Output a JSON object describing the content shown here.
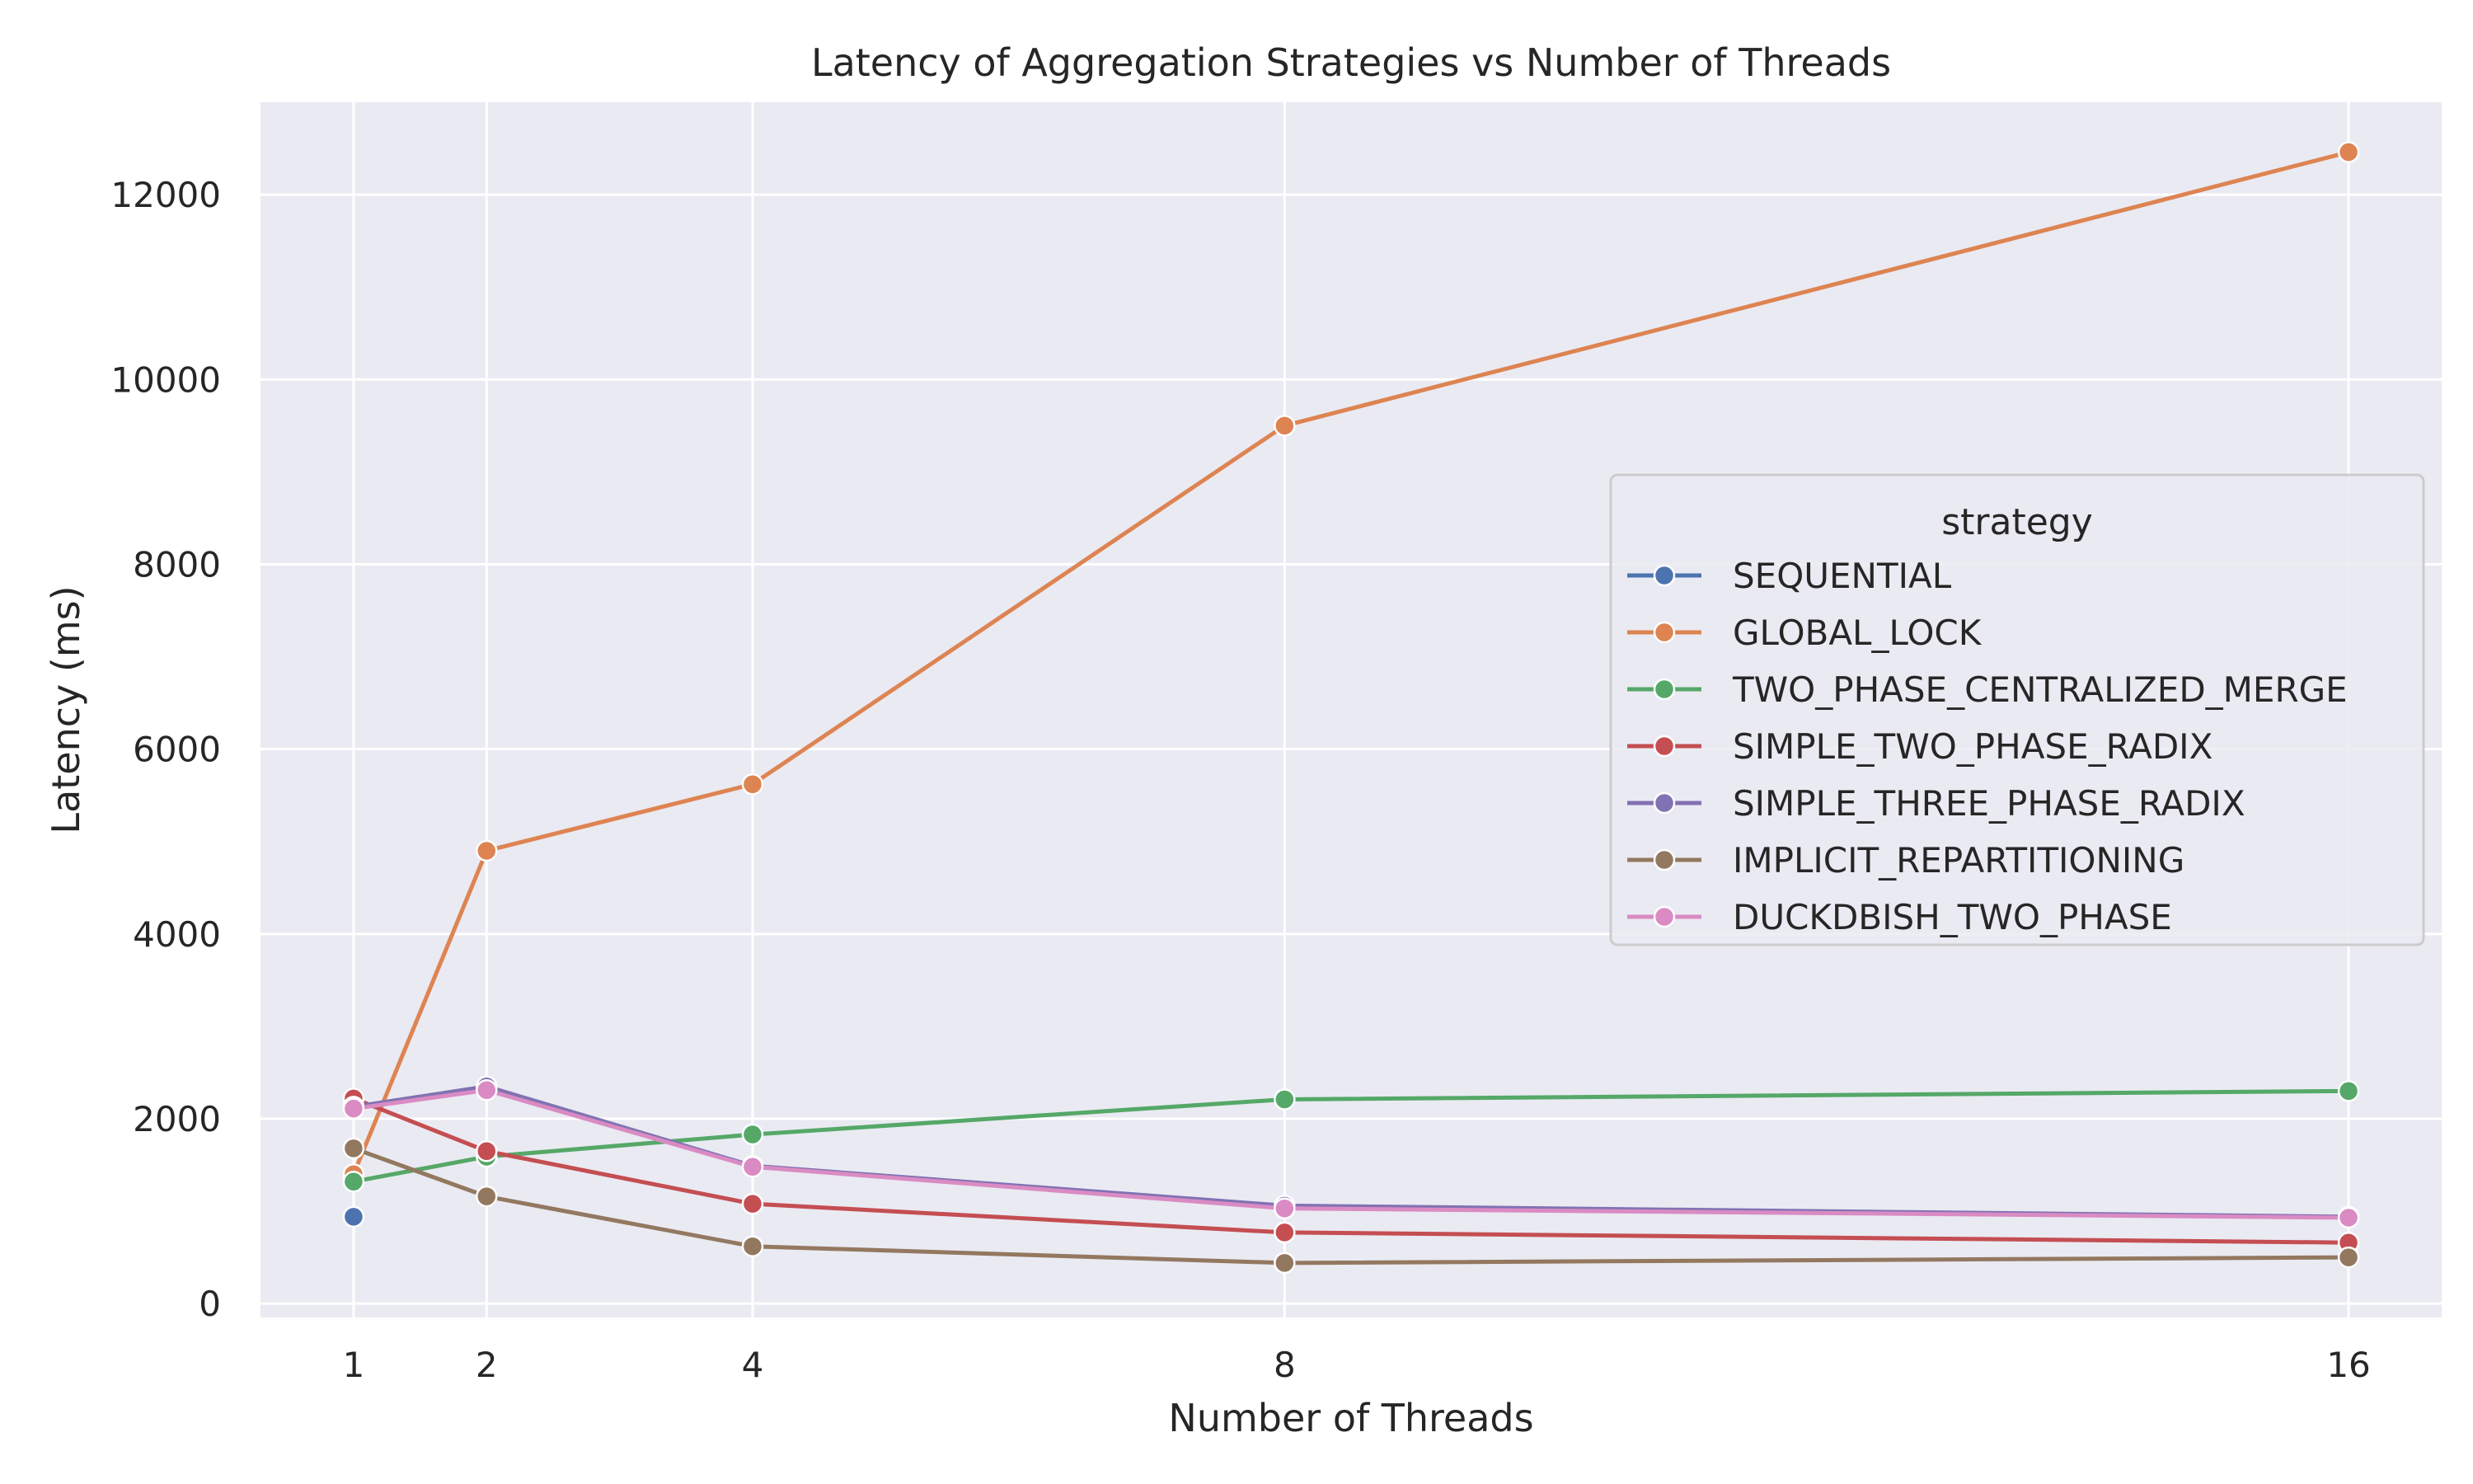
{
  "chart_data": {
    "type": "line",
    "title": "Latency of Aggregation Strategies vs Number of Threads",
    "xlabel": "Number of Threads",
    "ylabel": "Latency (ms)",
    "x": [
      1,
      2,
      4,
      8,
      16
    ],
    "xlim": [
      0.3,
      16.7
    ],
    "ylim": [
      -150,
      13000
    ],
    "xticks": [
      1,
      2,
      4,
      8,
      16
    ],
    "yticks": [
      0,
      2000,
      4000,
      6000,
      8000,
      10000,
      12000
    ],
    "grid": true,
    "legend_title": "strategy",
    "legend_position": "center-right",
    "series": [
      {
        "name": "SEQUENTIAL",
        "color": "#4c72b0",
        "x": [
          1
        ],
        "values": [
          940
        ]
      },
      {
        "name": "GLOBAL_LOCK",
        "color": "#dd8452",
        "x": [
          1,
          2,
          4,
          8,
          16
        ],
        "values": [
          1400,
          4900,
          5620,
          9500,
          12460
        ]
      },
      {
        "name": "TWO_PHASE_CENTRALIZED_MERGE",
        "color": "#55a868",
        "x": [
          1,
          2,
          4,
          8,
          16
        ],
        "values": [
          1320,
          1590,
          1830,
          2210,
          2300
        ]
      },
      {
        "name": "SIMPLE_TWO_PHASE_RADIX",
        "color": "#c44e52",
        "x": [
          1,
          2,
          4,
          8,
          16
        ],
        "values": [
          2220,
          1650,
          1080,
          770,
          660
        ]
      },
      {
        "name": "SIMPLE_THREE_PHASE_RADIX",
        "color": "#8172b3",
        "x": [
          1,
          2,
          4,
          8,
          16
        ],
        "values": [
          2130,
          2350,
          1490,
          1060,
          940
        ]
      },
      {
        "name": "IMPLICIT_REPARTITIONING",
        "color": "#937860",
        "x": [
          1,
          2,
          4,
          8,
          16
        ],
        "values": [
          1680,
          1160,
          620,
          440,
          500
        ]
      },
      {
        "name": "DUCKDBISH_TWO_PHASE",
        "color": "#da8bc3",
        "x": [
          1,
          2,
          4,
          8,
          16
        ],
        "values": [
          2110,
          2310,
          1480,
          1030,
          930
        ]
      }
    ]
  }
}
